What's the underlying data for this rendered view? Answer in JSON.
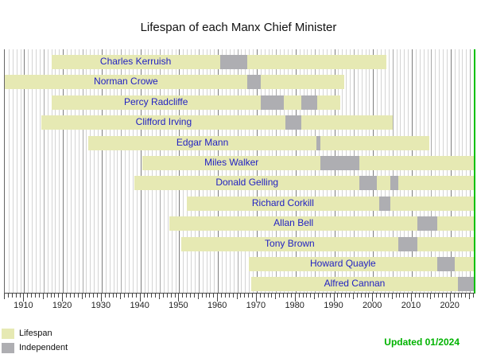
{
  "title": "Lifespan of each Manx Chief Minister",
  "updated_note": "Updated 01/2024",
  "colors": {
    "lifespan_bar": "#e6e9b3",
    "independent_segment": "#aeaeb2",
    "bar_label_text": "#2222c2",
    "updated_text": "#00b300",
    "present_border": "#00c000",
    "gridline_minor": "#d4d4d4",
    "gridline_5yr": "#a8a8a8",
    "gridline_decade": "#7d7d7d"
  },
  "legend": {
    "items": [
      {
        "label": "Lifespan",
        "color": "#e6e9b3"
      },
      {
        "label": "Independent",
        "color": "#aeaeb2"
      }
    ]
  },
  "chart_data": {
    "type": "bar",
    "subtype": "timeline-gantt",
    "title": "Lifespan of each Manx Chief Minister",
    "xlabel": "",
    "ylabel": "",
    "axis": {
      "min": 1905,
      "max": 2026,
      "tick_start": 1910,
      "tick_end": 2020,
      "tick_step": 10,
      "minor_step": 1
    },
    "tick_labels": [
      "1910",
      "1920",
      "1930",
      "1940",
      "1950",
      "1960",
      "1970",
      "1980",
      "1990",
      "2000",
      "2010",
      "2020"
    ],
    "legend_position": "bottom-left",
    "grid": true,
    "people": [
      {
        "name": "Charles Kerruish",
        "birth": 1917,
        "death": 2003.5,
        "terms": [
          [
            1960.5,
            1967.5
          ]
        ]
      },
      {
        "name": "Norman Crowe",
        "birth": 1905,
        "death": 1992.5,
        "terms": [
          [
            1967.5,
            1971
          ]
        ]
      },
      {
        "name": "Percy Radcliffe",
        "birth": 1917,
        "death": 1991.5,
        "terms": [
          [
            1971,
            1977
          ],
          [
            1981.5,
            1985.5
          ]
        ]
      },
      {
        "name": "Clifford Irving",
        "birth": 1914.5,
        "death": 2005,
        "terms": [
          [
            1977.5,
            1981.5
          ]
        ]
      },
      {
        "name": "Edgar Mann",
        "birth": 1926.5,
        "death": 2014.5,
        "terms": [
          [
            1985.5,
            1986.5
          ]
        ]
      },
      {
        "name": "Miles Walker",
        "birth": 1940.5,
        "death": null,
        "terms": [
          [
            1986.5,
            1996.5
          ]
        ]
      },
      {
        "name": "Donald Gelling",
        "birth": 1938.5,
        "death": null,
        "terms": [
          [
            1996.5,
            2001
          ],
          [
            2004.5,
            2006.5
          ]
        ]
      },
      {
        "name": "Richard Corkill",
        "birth": 1952,
        "death": null,
        "terms": [
          [
            2001.5,
            2004.5
          ]
        ]
      },
      {
        "name": "Allan Bell",
        "birth": 1947.5,
        "death": null,
        "terms": [
          [
            2011.5,
            2016.5
          ]
        ]
      },
      {
        "name": "Tony Brown",
        "birth": 1950.5,
        "death": null,
        "terms": [
          [
            2006.5,
            2011.5
          ]
        ]
      },
      {
        "name": "Howard Quayle",
        "birth": 1968,
        "death": null,
        "terms": [
          [
            2016.5,
            2021
          ]
        ]
      },
      {
        "name": "Alfred Cannan",
        "birth": 1968.5,
        "death": null,
        "terms": [
          [
            2022,
            2026
          ]
        ]
      }
    ]
  }
}
